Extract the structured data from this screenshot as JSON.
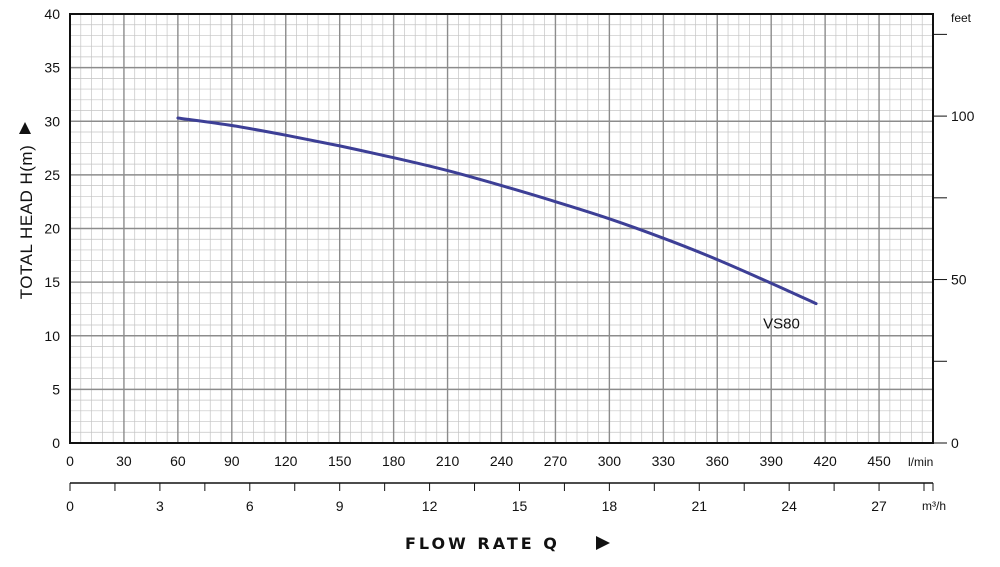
{
  "chart_data": {
    "type": "line",
    "title": "",
    "xlabel": "FLOW RATE Q",
    "ylabel": "TOTAL HEAD H(m)",
    "x_unit_primary": "l/min",
    "x_unit_secondary": "m³/h",
    "y_unit_right": "feet",
    "xlim": [
      0,
      480
    ],
    "ylim": [
      0,
      40
    ],
    "x_ticks_primary": [
      0,
      30,
      60,
      90,
      120,
      150,
      180,
      210,
      240,
      270,
      300,
      330,
      360,
      390,
      420,
      450
    ],
    "x_ticks_secondary": [
      0,
      3,
      6,
      9,
      12,
      15,
      18,
      21,
      24,
      27
    ],
    "y_ticks": [
      0,
      5,
      10,
      15,
      20,
      25,
      30,
      35,
      40
    ],
    "y_ticks_right": [
      0,
      50,
      100
    ],
    "grid": true,
    "series": [
      {
        "name": "VS80",
        "color": "#3d3f96",
        "x": [
          60,
          90,
          120,
          150,
          180,
          210,
          240,
          270,
          300,
          330,
          360,
          390,
          415
        ],
        "y": [
          30.3,
          29.6,
          28.7,
          27.7,
          26.6,
          25.4,
          24.0,
          22.5,
          20.9,
          19.1,
          17.1,
          14.9,
          13.0
        ]
      }
    ]
  }
}
